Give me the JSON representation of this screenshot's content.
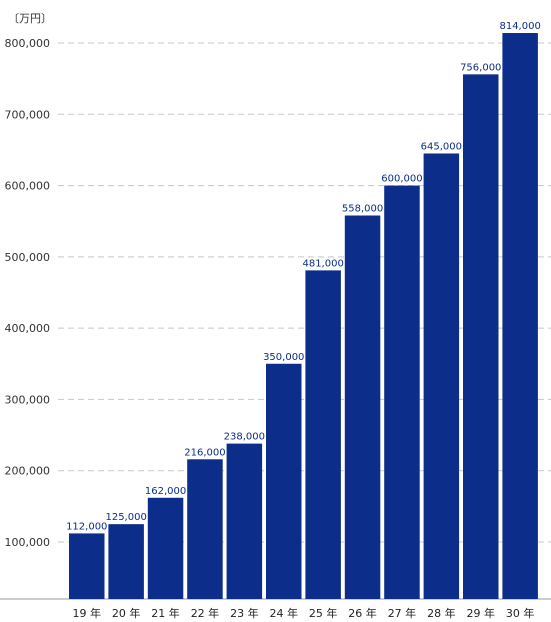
{
  "chart_data": {
    "type": "bar",
    "unit_label": "〔万円〕",
    "categories": [
      "19 年",
      "20 年",
      "21 年",
      "22 年",
      "23 年",
      "24 年",
      "25 年",
      "26 年",
      "27 年",
      "28 年",
      "29 年",
      "30 年"
    ],
    "values": [
      112000,
      125000,
      162000,
      216000,
      238000,
      350000,
      481000,
      558000,
      600000,
      645000,
      756000,
      814000
    ],
    "value_labels": [
      "112,000",
      "125,000",
      "162,000",
      "216,000",
      "238,000",
      "350,000",
      "481,000",
      "558,000",
      "600,000",
      "645,000",
      "756,000",
      "814,000"
    ],
    "yticks": [
      100000,
      200000,
      300000,
      400000,
      500000,
      600000,
      700000,
      800000
    ],
    "ytick_labels": [
      "100,000",
      "200,000",
      "300,000",
      "400,000",
      "500,000",
      "600,000",
      "700,000",
      "800,000"
    ],
    "ylim": [
      20000,
      800000
    ],
    "grid": true,
    "bar_color": "#0c2d8a",
    "label_color": "#0c2d8a"
  }
}
